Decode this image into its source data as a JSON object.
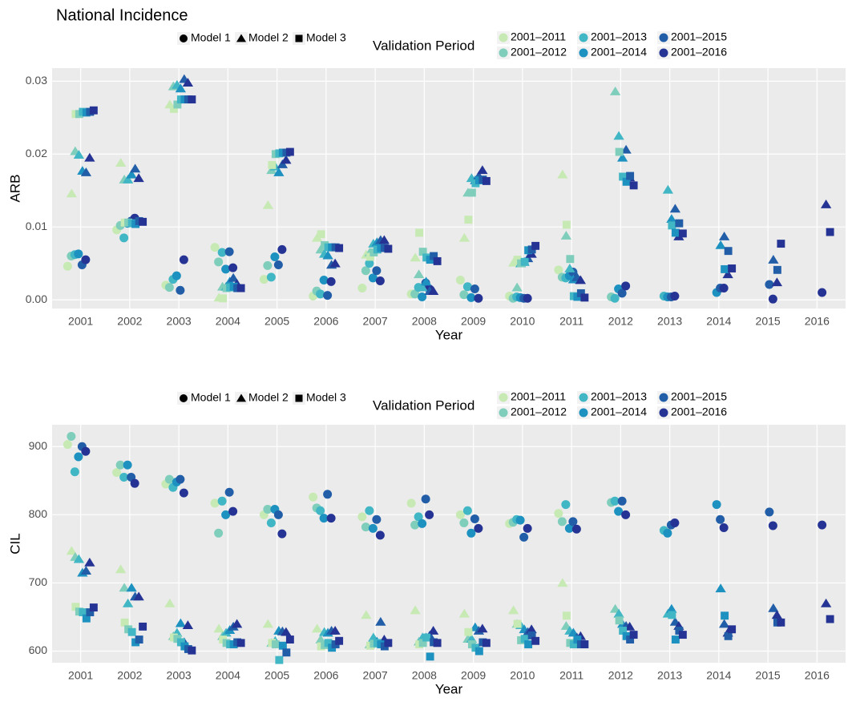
{
  "chart_data": [
    {
      "type": "scatter",
      "title": "National Incidence",
      "xlabel": "Year",
      "ylabel": "ARB",
      "categories": [
        "2001",
        "2002",
        "2003",
        "2004",
        "2005",
        "2006",
        "2007",
        "2008",
        "2009",
        "2010",
        "2011",
        "2012",
        "2013",
        "2014",
        "2015",
        "2016"
      ],
      "ylim": [
        -0.0012,
        0.0318
      ],
      "yticks": [
        {
          "value": 0,
          "label": "0.00"
        },
        0.01,
        0.02,
        0.03
      ],
      "grid": true,
      "models": [
        {
          "name": "Model 1",
          "shape": "circle"
        },
        {
          "name": "Model 2",
          "shape": "triangle"
        },
        {
          "name": "Model 3",
          "shape": "square"
        }
      ],
      "legend_title": "Validation Period",
      "periods": [
        {
          "name": "2001–2011",
          "color": "#c7e9b4"
        },
        {
          "name": "2001–2012",
          "color": "#7fcdbb"
        },
        {
          "name": "2001–2013",
          "color": "#41b6c4"
        },
        {
          "name": "2001–2014",
          "color": "#1d91c0"
        },
        {
          "name": "2001–2015",
          "color": "#225ea8"
        },
        {
          "name": "2001–2016",
          "color": "#253494"
        }
      ],
      "values": [
        [
          [
            0.0046,
            0.0096,
            0.002,
            0.0072,
            0.0028,
            0.0005,
            0.0016,
            0.0008,
            0.0027,
            0.0005,
            0.0041,
            null,
            null,
            null,
            null,
            null
          ],
          [
            0.006,
            0.0102,
            0.0017,
            0.0052,
            0.0047,
            0.0012,
            0.004,
            0.0008,
            0.0007,
            0.0002,
            0.0031,
            0.0004,
            null,
            null,
            null,
            null
          ],
          [
            0.0062,
            0.0085,
            0.0028,
            0.0065,
            0.0031,
            0.0008,
            0.005,
            0.0017,
            0.0018,
            0.0004,
            0.003,
            0.0002,
            0.0005,
            null,
            null,
            null
          ],
          [
            0.0063,
            0.0105,
            0.0033,
            0.0042,
            0.0059,
            0.0027,
            0.003,
            0.0004,
            0.0003,
            0.0003,
            0.0033,
            0.0015,
            0.0004,
            0.001,
            null,
            null
          ],
          [
            0.0048,
            0.0108,
            0.0013,
            0.0066,
            0.0048,
            0.0006,
            0.004,
            0.0023,
            0.0015,
            0.0002,
            0.0038,
            0.0009,
            0.0004,
            0.0016,
            0.0021,
            null
          ],
          [
            0.0055,
            0.0112,
            0.0055,
            0.0044,
            0.0069,
            0.0025,
            0.0026,
            0.0015,
            0.0002,
            0.0002,
            0.0028,
            0.0019,
            0.0005,
            0.0016,
            0.0001,
            0.001
          ]
        ],
        [
          [
            0.0146,
            0.0188,
            0.0268,
            0.0003,
            0.013,
            0.0085,
            0.0062,
            0.0058,
            0.0085,
            0.0051,
            0.0172,
            null,
            null,
            null,
            null,
            null
          ],
          [
            0.0204,
            0.0165,
            0.0293,
            0.0018,
            0.0178,
            0.0069,
            0.0065,
            0.0035,
            0.0147,
            0.0017,
            0.0088,
            0.0286,
            null,
            null,
            null,
            null
          ],
          [
            0.0199,
            0.0165,
            0.0295,
            0.0018,
            0.0183,
            0.0063,
            0.0077,
            0.0017,
            0.0167,
            0.005,
            0.0043,
            0.0225,
            0.0151,
            null,
            null,
            null
          ],
          [
            0.0177,
            0.0172,
            0.029,
            0.0025,
            0.0175,
            0.0061,
            0.0079,
            0.0025,
            0.0164,
            0.0052,
            0.0028,
            0.0195,
            0.0111,
            0.0075,
            null,
            null
          ],
          [
            0.0175,
            0.018,
            0.0303,
            0.003,
            0.0186,
            0.0048,
            0.0082,
            0.0012,
            0.017,
            0.0057,
            0.0031,
            0.0206,
            0.0125,
            0.0087,
            0.0055,
            null
          ],
          [
            0.0195,
            0.0167,
            0.0298,
            0.0022,
            0.0192,
            0.005,
            0.0082,
            0.0012,
            0.0178,
            0.0063,
            0.0027,
            0.0168,
            0.0087,
            0.0035,
            0.0024,
            0.0131
          ]
        ],
        [
          [
            0.0255,
            0.0106,
            0.0262,
            0.0002,
            0.0185,
            0.009,
            0.0059,
            0.0092,
            0.011,
            0.0055,
            0.0103,
            null,
            null,
            null,
            null,
            null
          ],
          [
            0.0255,
            0.0106,
            0.0268,
            0.0016,
            0.02,
            0.0075,
            0.0065,
            0.0066,
            0.0147,
            0.005,
            0.0056,
            0.0203,
            null,
            null,
            null,
            null
          ],
          [
            0.0258,
            0.0105,
            0.0275,
            0.0017,
            0.0201,
            0.0072,
            0.0069,
            0.0058,
            0.016,
            0.0052,
            0.0005,
            0.0169,
            0.0102,
            null,
            null,
            null
          ],
          [
            0.0257,
            0.0104,
            0.0275,
            0.0018,
            0.0202,
            0.0072,
            0.0071,
            0.0055,
            0.0164,
            0.0068,
            0.0004,
            0.0162,
            0.0092,
            0.0042,
            null,
            null
          ],
          [
            0.0258,
            0.0108,
            0.0275,
            0.0016,
            0.0202,
            0.0072,
            0.0071,
            0.006,
            0.0165,
            0.0069,
            0.0009,
            0.017,
            0.0105,
            0.0067,
            0.0041,
            null
          ],
          [
            0.026,
            0.0107,
            0.0275,
            0.0016,
            0.0203,
            0.0071,
            0.007,
            0.0053,
            0.0163,
            0.0074,
            0.0003,
            0.0157,
            0.0091,
            0.0043,
            0.0077,
            0.0093
          ]
        ]
      ]
    },
    {
      "type": "scatter",
      "xlabel": "Year",
      "ylabel": "CIL",
      "categories": [
        "2001",
        "2002",
        "2003",
        "2004",
        "2005",
        "2006",
        "2007",
        "2008",
        "2009",
        "2010",
        "2011",
        "2012",
        "2013",
        "2014",
        "2015",
        "2016"
      ],
      "ylim": [
        583,
        932
      ],
      "yticks": [
        600,
        700,
        800,
        900
      ],
      "grid": true,
      "models": [
        {
          "name": "Model 1",
          "shape": "circle"
        },
        {
          "name": "Model 2",
          "shape": "triangle"
        },
        {
          "name": "Model 3",
          "shape": "square"
        }
      ],
      "legend_title": "Validation Period",
      "periods": [
        {
          "name": "2001–2011",
          "color": "#c7e9b4"
        },
        {
          "name": "2001–2012",
          "color": "#7fcdbb"
        },
        {
          "name": "2001–2013",
          "color": "#41b6c4"
        },
        {
          "name": "2001–2014",
          "color": "#1d91c0"
        },
        {
          "name": "2001–2015",
          "color": "#225ea8"
        },
        {
          "name": "2001–2016",
          "color": "#253494"
        }
      ],
      "values": [
        [
          [
            903,
            862,
            845,
            817,
            800,
            826,
            797,
            817,
            800,
            787,
            802,
            null,
            null,
            null,
            null,
            null
          ],
          [
            915,
            873,
            852,
            773,
            808,
            810,
            782,
            785,
            788,
            789,
            790,
            818,
            null,
            null,
            null,
            null
          ],
          [
            863,
            855,
            840,
            820,
            788,
            806,
            806,
            797,
            806,
            793,
            815,
            820,
            777,
            null,
            null,
            null
          ],
          [
            885,
            873,
            848,
            800,
            808,
            795,
            780,
            787,
            773,
            792,
            780,
            805,
            773,
            815,
            null,
            null
          ],
          [
            900,
            855,
            852,
            833,
            800,
            830,
            793,
            823,
            794,
            767,
            790,
            820,
            785,
            793,
            804,
            null
          ],
          [
            893,
            846,
            832,
            805,
            772,
            795,
            770,
            800,
            780,
            780,
            779,
            800,
            788,
            781,
            784,
            785
          ]
        ],
        [
          [
            747,
            720,
            670,
            633,
            640,
            633,
            653,
            660,
            655,
            660,
            700,
            null,
            null,
            null,
            null,
            null
          ],
          [
            738,
            693,
            622,
            622,
            612,
            617,
            610,
            614,
            618,
            640,
            637,
            662,
            null,
            null,
            null,
            null
          ],
          [
            735,
            670,
            627,
            627,
            615,
            628,
            620,
            620,
            618,
            638,
            630,
            655,
            655,
            null,
            null,
            null
          ],
          [
            715,
            693,
            641,
            631,
            630,
            627,
            614,
            620,
            635,
            632,
            627,
            640,
            662,
            692,
            null,
            null
          ],
          [
            718,
            680,
            613,
            636,
            629,
            630,
            643,
            623,
            630,
            628,
            620,
            637,
            643,
            640,
            663,
            null
          ],
          [
            730,
            680,
            638,
            640,
            628,
            630,
            617,
            630,
            633,
            632,
            622,
            636,
            637,
            627,
            653,
            670
          ]
        ],
        [
          [
            665,
            642,
            620,
            617,
            612,
            607,
            608,
            610,
            628,
            640,
            652,
            null,
            null,
            null,
            null,
            null
          ],
          [
            658,
            632,
            618,
            612,
            610,
            609,
            611,
            612,
            610,
            616,
            612,
            645,
            null,
            null,
            null,
            null
          ],
          [
            657,
            628,
            613,
            610,
            587,
            612,
            612,
            620,
            605,
            618,
            610,
            630,
            653,
            null,
            null,
            null
          ],
          [
            648,
            613,
            607,
            610,
            608,
            605,
            610,
            592,
            600,
            610,
            617,
            622,
            617,
            652,
            null,
            null
          ],
          [
            657,
            617,
            603,
            613,
            598,
            610,
            607,
            613,
            613,
            623,
            610,
            617,
            630,
            622,
            642,
            null
          ],
          [
            664,
            636,
            601,
            612,
            617,
            615,
            612,
            612,
            612,
            615,
            610,
            624,
            624,
            632,
            642,
            647
          ]
        ]
      ]
    }
  ]
}
